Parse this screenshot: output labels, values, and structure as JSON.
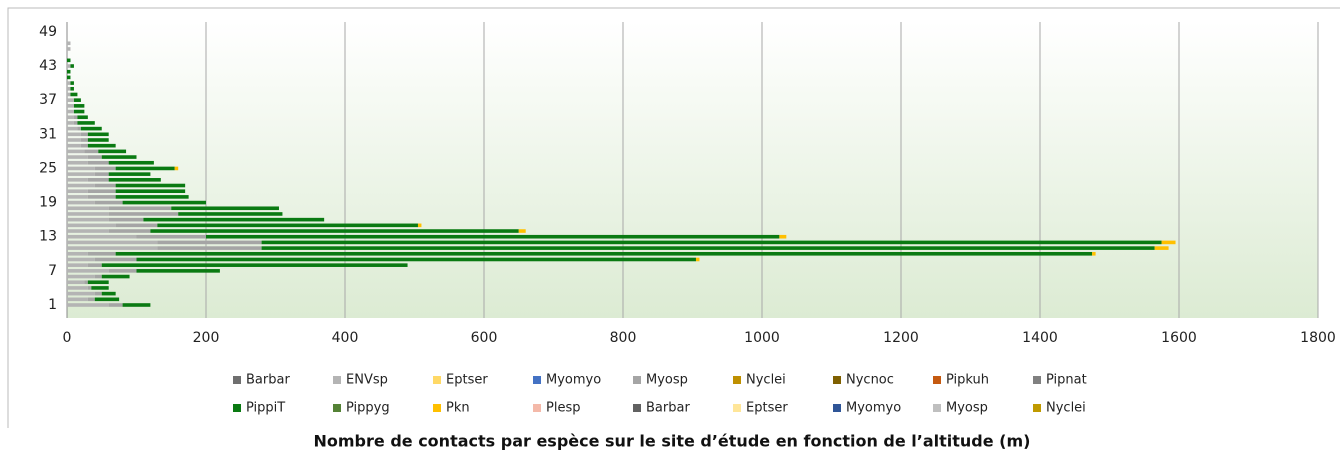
{
  "chart_data": {
    "type": "stacked_barh",
    "title": "Nombre de contacts par espèce sur le site d’étude en fonction de l’altitude (m)",
    "categories": [
      "1",
      null,
      null,
      null,
      null,
      null,
      "7",
      null,
      null,
      null,
      null,
      null,
      "13",
      null,
      null,
      null,
      null,
      null,
      "19",
      null,
      null,
      null,
      null,
      null,
      "25",
      null,
      null,
      null,
      null,
      null,
      "31",
      null,
      null,
      null,
      null,
      null,
      "37",
      null,
      null,
      null,
      null,
      null,
      "43",
      null,
      null,
      null,
      null,
      null,
      "49",
      null
    ],
    "xlim": [
      0,
      1800
    ],
    "xticks": [
      0,
      200,
      400,
      600,
      800,
      1000,
      1200,
      1400,
      1600,
      1800
    ],
    "grid": true,
    "series": [
      {
        "name": "Barbar",
        "color": "#6f6f6f",
        "values": [
          0,
          0,
          0,
          0,
          0,
          0,
          0,
          0,
          0,
          0,
          0,
          0,
          0,
          0,
          0,
          0,
          0,
          0,
          0,
          0,
          0,
          0,
          0,
          0,
          0,
          0,
          0,
          0,
          0,
          0,
          0,
          0,
          0,
          0,
          0,
          0,
          0,
          0,
          0,
          0,
          0,
          0,
          0,
          0,
          0,
          0,
          0,
          0,
          0,
          0
        ]
      },
      {
        "name": "ENVsp",
        "color": "#b4b4b4",
        "values": [
          60,
          30,
          40,
          30,
          25,
          40,
          60,
          30,
          40,
          30,
          130,
          130,
          100,
          60,
          70,
          60,
          60,
          60,
          40,
          30,
          30,
          40,
          30,
          40,
          40,
          30,
          30,
          25,
          20,
          20,
          20,
          15,
          10,
          10,
          10,
          10,
          10,
          5,
          5,
          5,
          0,
          0,
          5,
          0,
          0,
          5,
          5,
          0,
          0,
          0
        ]
      },
      {
        "name": "Eptser",
        "color": "#ffd966",
        "values": [
          0,
          0,
          0,
          0,
          0,
          0,
          0,
          0,
          0,
          0,
          0,
          0,
          0,
          0,
          0,
          0,
          0,
          0,
          0,
          0,
          0,
          0,
          0,
          0,
          0,
          0,
          0,
          0,
          0,
          0,
          0,
          0,
          0,
          0,
          0,
          0,
          0,
          0,
          0,
          0,
          0,
          0,
          0,
          0,
          0,
          0,
          0,
          0,
          0,
          0
        ]
      },
      {
        "name": "Myomyo",
        "color": "#4472c4",
        "values": [
          0,
          0,
          0,
          0,
          0,
          0,
          0,
          0,
          0,
          0,
          0,
          0,
          0,
          0,
          0,
          0,
          0,
          0,
          0,
          0,
          0,
          0,
          0,
          0,
          0,
          0,
          0,
          0,
          0,
          0,
          0,
          0,
          0,
          0,
          0,
          0,
          0,
          0,
          0,
          0,
          0,
          0,
          0,
          0,
          0,
          0,
          0,
          0,
          0,
          0
        ]
      },
      {
        "name": "Myosp",
        "color": "#a5a5a5",
        "values": [
          20,
          10,
          10,
          5,
          5,
          10,
          40,
          20,
          60,
          40,
          150,
          150,
          100,
          60,
          60,
          50,
          100,
          90,
          40,
          40,
          40,
          30,
          30,
          20,
          30,
          30,
          20,
          20,
          10,
          10,
          10,
          5,
          5,
          5,
          0,
          0,
          0,
          0,
          0,
          0,
          0,
          0,
          0,
          0,
          0,
          0,
          0,
          0,
          0,
          0
        ]
      },
      {
        "name": "Nyclei",
        "color": "#bf9000",
        "values": [
          0,
          0,
          0,
          0,
          0,
          0,
          0,
          0,
          0,
          0,
          0,
          0,
          0,
          0,
          0,
          0,
          0,
          0,
          0,
          0,
          0,
          0,
          0,
          0,
          0,
          0,
          0,
          0,
          0,
          0,
          0,
          0,
          0,
          0,
          0,
          0,
          0,
          0,
          0,
          0,
          0,
          0,
          0,
          0,
          0,
          0,
          0,
          0,
          0,
          0
        ]
      },
      {
        "name": "Nycnoc",
        "color": "#7f6000",
        "values": [
          0,
          0,
          0,
          0,
          0,
          0,
          0,
          0,
          0,
          0,
          0,
          0,
          0,
          0,
          0,
          0,
          0,
          0,
          0,
          0,
          0,
          0,
          0,
          0,
          0,
          0,
          0,
          0,
          0,
          0,
          0,
          0,
          0,
          0,
          0,
          0,
          0,
          0,
          0,
          0,
          0,
          0,
          0,
          0,
          0,
          0,
          0,
          0,
          0,
          0
        ]
      },
      {
        "name": "Pipkuh",
        "color": "#c55a11",
        "values": [
          0,
          0,
          0,
          0,
          0,
          0,
          0,
          0,
          0,
          0,
          0,
          0,
          0,
          0,
          0,
          0,
          0,
          0,
          0,
          0,
          0,
          0,
          0,
          0,
          0,
          0,
          0,
          0,
          0,
          0,
          0,
          0,
          0,
          0,
          0,
          0,
          0,
          0,
          0,
          0,
          0,
          0,
          0,
          0,
          0,
          0,
          0,
          0,
          0,
          0
        ]
      },
      {
        "name": "Pipnat",
        "color": "#808080",
        "values": [
          0,
          0,
          0,
          0,
          0,
          0,
          0,
          0,
          0,
          0,
          0,
          0,
          0,
          0,
          0,
          0,
          0,
          0,
          0,
          0,
          0,
          0,
          0,
          0,
          0,
          0,
          0,
          0,
          0,
          0,
          0,
          0,
          0,
          0,
          0,
          0,
          0,
          0,
          0,
          0,
          0,
          0,
          0,
          0,
          0,
          0,
          0,
          0,
          0,
          0
        ]
      },
      {
        "name": "PippiT",
        "color": "#0a7a12",
        "values": [
          40,
          35,
          20,
          25,
          30,
          40,
          120,
          440,
          805,
          1405,
          1285,
          1295,
          825,
          530,
          375,
          260,
          150,
          155,
          120,
          105,
          100,
          100,
          75,
          60,
          85,
          65,
          50,
          40,
          40,
          30,
          30,
          30,
          25,
          15,
          15,
          15,
          10,
          10,
          5,
          5,
          5,
          5,
          5,
          5,
          0,
          0,
          0,
          0,
          0,
          0
        ]
      },
      {
        "name": "Pippyg",
        "color": "#548235",
        "values": [
          0,
          0,
          0,
          0,
          0,
          0,
          0,
          0,
          0,
          0,
          0,
          0,
          0,
          0,
          0,
          0,
          0,
          0,
          0,
          0,
          0,
          0,
          0,
          0,
          0,
          0,
          0,
          0,
          0,
          0,
          0,
          0,
          0,
          0,
          0,
          0,
          0,
          0,
          0,
          0,
          0,
          0,
          0,
          0,
          0,
          0,
          0,
          0,
          0,
          0
        ]
      },
      {
        "name": "Pkn",
        "color": "#ffc000",
        "values": [
          0,
          0,
          0,
          0,
          0,
          0,
          0,
          0,
          5,
          5,
          20,
          20,
          10,
          10,
          5,
          0,
          0,
          0,
          0,
          0,
          0,
          0,
          0,
          0,
          5,
          0,
          0,
          0,
          0,
          0,
          0,
          0,
          0,
          0,
          0,
          0,
          0,
          0,
          0,
          0,
          0,
          0,
          0,
          0,
          0,
          0,
          0,
          0,
          0,
          0
        ]
      },
      {
        "name": "Plesp",
        "color": "#f4b9a9",
        "values": [
          0,
          0,
          0,
          0,
          0,
          0,
          0,
          0,
          0,
          0,
          0,
          0,
          0,
          0,
          0,
          0,
          0,
          0,
          0,
          0,
          0,
          0,
          0,
          0,
          0,
          0,
          0,
          0,
          0,
          0,
          0,
          0,
          0,
          0,
          0,
          0,
          0,
          0,
          0,
          0,
          0,
          0,
          0,
          0,
          0,
          0,
          0,
          0,
          0,
          0
        ]
      },
      {
        "name": "Barbar",
        "color": "#616161",
        "values": [
          0,
          0,
          0,
          0,
          0,
          0,
          0,
          0,
          0,
          0,
          0,
          0,
          0,
          0,
          0,
          0,
          0,
          0,
          0,
          0,
          0,
          0,
          0,
          0,
          0,
          0,
          0,
          0,
          0,
          0,
          0,
          0,
          0,
          0,
          0,
          0,
          0,
          0,
          0,
          0,
          0,
          0,
          0,
          0,
          0,
          0,
          0,
          0,
          0,
          0
        ]
      },
      {
        "name": "Eptser",
        "color": "#ffe699",
        "values": [
          0,
          0,
          0,
          0,
          0,
          0,
          0,
          0,
          0,
          0,
          0,
          0,
          0,
          0,
          0,
          0,
          0,
          0,
          0,
          0,
          0,
          0,
          0,
          0,
          0,
          0,
          0,
          0,
          0,
          0,
          0,
          0,
          0,
          0,
          0,
          0,
          0,
          0,
          0,
          0,
          0,
          0,
          0,
          0,
          0,
          0,
          0,
          0,
          0,
          0
        ]
      },
      {
        "name": "Myomyo",
        "color": "#2f5597",
        "values": [
          0,
          0,
          0,
          0,
          0,
          0,
          0,
          0,
          0,
          0,
          0,
          0,
          0,
          0,
          0,
          0,
          0,
          0,
          0,
          0,
          0,
          0,
          0,
          0,
          0,
          0,
          0,
          0,
          0,
          0,
          0,
          0,
          0,
          0,
          0,
          0,
          0,
          0,
          0,
          0,
          0,
          0,
          0,
          0,
          0,
          0,
          0,
          0,
          0,
          0
        ]
      },
      {
        "name": "Myosp",
        "color": "#bfbfbf",
        "values": [
          0,
          0,
          0,
          0,
          0,
          0,
          0,
          0,
          0,
          0,
          0,
          0,
          0,
          0,
          0,
          0,
          0,
          0,
          0,
          0,
          0,
          0,
          0,
          0,
          0,
          0,
          0,
          0,
          0,
          0,
          0,
          0,
          0,
          0,
          0,
          0,
          0,
          0,
          0,
          0,
          0,
          0,
          0,
          0,
          0,
          0,
          0,
          0,
          0,
          0
        ]
      },
      {
        "name": "Nyclei",
        "color": "#c09a00",
        "values": [
          0,
          0,
          0,
          0,
          0,
          0,
          0,
          0,
          0,
          0,
          0,
          0,
          0,
          0,
          0,
          0,
          0,
          0,
          0,
          0,
          0,
          0,
          0,
          0,
          0,
          0,
          0,
          0,
          0,
          0,
          0,
          0,
          0,
          0,
          0,
          0,
          0,
          0,
          0,
          0,
          0,
          0,
          0,
          0,
          0,
          0,
          0,
          0,
          0,
          0
        ]
      }
    ]
  }
}
